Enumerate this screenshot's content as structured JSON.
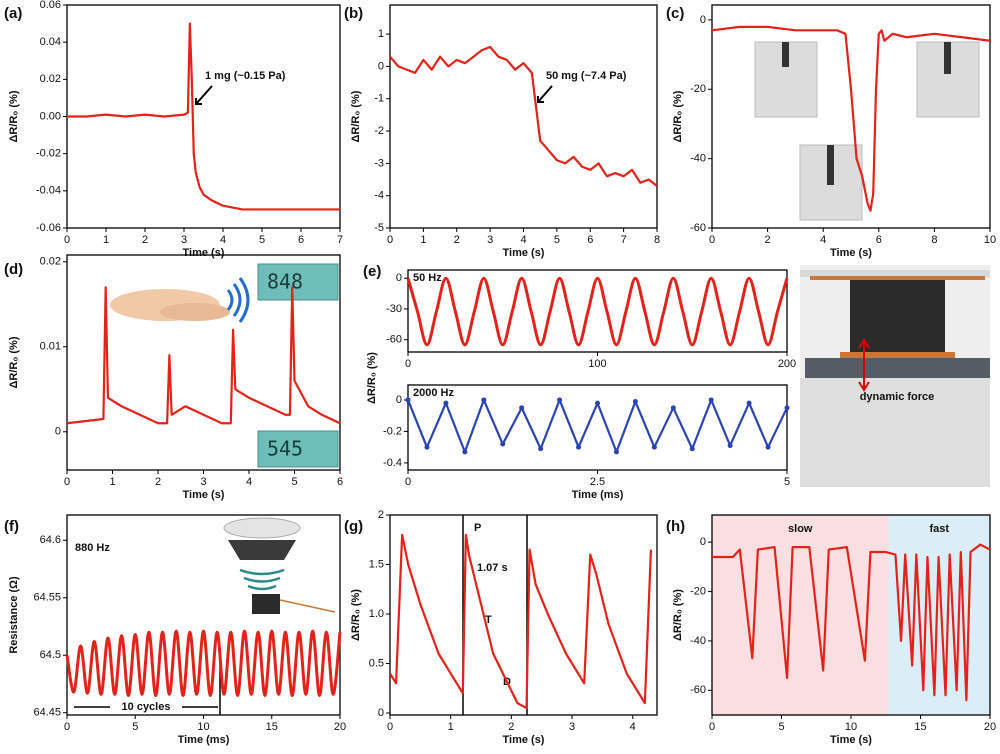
{
  "chart_data": [
    {
      "type": "line",
      "label": "(a)",
      "xlabel": "Time (s)",
      "ylabel": "ΔR/R₀ (%)",
      "color": "#e32219",
      "xlim": [
        0,
        7
      ],
      "xticks": [
        0,
        1,
        2,
        3,
        4,
        5,
        6,
        7
      ],
      "ylim": [
        -0.06,
        0.06
      ],
      "yticks": [
        {
          "value": -0.06,
          "label": "-0.06"
        },
        {
          "value": -0.04,
          "label": "-0.04"
        },
        {
          "value": -0.02,
          "label": "-0.02"
        },
        {
          "value": 0,
          "label": "0.00"
        },
        {
          "value": 0.02,
          "label": "0.02"
        },
        {
          "value": 0.04,
          "label": "0.04"
        },
        {
          "value": 0.06,
          "label": "0.06"
        }
      ],
      "x": [
        0,
        0.5,
        1,
        1.5,
        2,
        2.5,
        3,
        3.1,
        3.15,
        3.2,
        3.25,
        3.3,
        3.4,
        3.5,
        3.7,
        4,
        4.5,
        5,
        5.5,
        6,
        6.5,
        7
      ],
      "values": [
        0,
        0,
        0.001,
        0,
        0.001,
        0,
        0.001,
        0.002,
        0.05,
        0.02,
        -0.02,
        -0.03,
        -0.038,
        -0.042,
        -0.045,
        -0.048,
        -0.05,
        -0.05,
        -0.05,
        -0.05,
        -0.05,
        -0.05
      ],
      "annotations": [
        "1 mg (~0.15 Pa)"
      ]
    },
    {
      "type": "line",
      "label": "(b)",
      "xlabel": "Time (s)",
      "ylabel": "ΔR/R₀ (%)",
      "color": "#e32219",
      "xlim": [
        0,
        8
      ],
      "xticks": [
        0,
        1,
        2,
        3,
        4,
        5,
        6,
        7,
        8
      ],
      "ylim": [
        -5,
        1.9
      ],
      "yticks": [
        -5,
        -4,
        -3,
        -2,
        -1,
        0,
        1
      ],
      "x": [
        0,
        0.25,
        0.5,
        0.75,
        1,
        1.25,
        1.5,
        1.75,
        2,
        2.25,
        2.5,
        2.75,
        3,
        3.25,
        3.5,
        3.75,
        4,
        4.25,
        4.5,
        4.75,
        5,
        5.25,
        5.5,
        5.75,
        6,
        6.25,
        6.5,
        6.75,
        7,
        7.25,
        7.5,
        7.75,
        8
      ],
      "values": [
        0.3,
        0,
        -0.1,
        -0.2,
        0.2,
        -0.1,
        0.3,
        0,
        0.2,
        0.1,
        0.3,
        0.5,
        0.6,
        0.3,
        0.2,
        -0.1,
        0.1,
        -0.2,
        -2.3,
        -2.6,
        -2.9,
        -3,
        -2.8,
        -3.1,
        -3.2,
        -3,
        -3.4,
        -3.3,
        -3.4,
        -3.2,
        -3.6,
        -3.5,
        -3.7
      ],
      "annotations": [
        "50 mg (~7.4 Pa)"
      ]
    },
    {
      "type": "line",
      "label": "(c)",
      "xlabel": "Time (s)",
      "ylabel": "ΔR/R₀ (%)",
      "color": "#e32219",
      "xlim": [
        0,
        10
      ],
      "xticks": [
        0,
        2,
        4,
        6,
        8,
        10
      ],
      "ylim": [
        -60,
        4.3
      ],
      "yticks": [
        -60,
        -40,
        -20,
        0
      ],
      "x": [
        0,
        1,
        2,
        3,
        4,
        4.5,
        4.8,
        5,
        5.2,
        5.4,
        5.6,
        5.7,
        5.8,
        5.9,
        6,
        6.1,
        6.2,
        6.5,
        7,
        8,
        9,
        10
      ],
      "values": [
        -3,
        -2,
        -2,
        -3,
        -3,
        -3,
        -4,
        -20,
        -40,
        -45,
        -53,
        -55,
        -50,
        -20,
        -4,
        -3,
        -6,
        -4,
        -5,
        -4,
        -5,
        -6
      ]
    },
    {
      "type": "line",
      "label": "(d)",
      "xlabel": "Time (s)",
      "ylabel": "ΔR/R₀ (%)",
      "color": "#e32219",
      "xlim": [
        0,
        6
      ],
      "xticks": [
        0,
        1,
        2,
        3,
        4,
        5,
        6
      ],
      "ylim": [
        -0.0045,
        0.0208
      ],
      "yticks": [
        0,
        0.01,
        0.02
      ],
      "x": [
        0,
        0.8,
        0.85,
        0.9,
        1.2,
        1.6,
        2.0,
        2.2,
        2.25,
        2.3,
        2.6,
        3.0,
        3.4,
        3.6,
        3.65,
        3.7,
        4.0,
        4.4,
        4.8,
        4.9,
        4.95,
        5.0,
        5.3,
        5.6,
        6
      ],
      "values": [
        0.001,
        0.0015,
        0.017,
        0.004,
        0.003,
        0.002,
        0.001,
        0.001,
        0.009,
        0.002,
        0.003,
        0.002,
        0.001,
        0.001,
        0.012,
        0.005,
        0.004,
        0.003,
        0.002,
        0.002,
        0.017,
        0.006,
        0.003,
        0.002,
        0.001
      ],
      "annotations": [
        "848",
        "545"
      ]
    },
    {
      "type": "line",
      "label": "(e)",
      "ylabel": "ΔR/R₀ (%)",
      "color": "#e32219",
      "xlim": [
        0,
        200
      ],
      "xticks": [
        0,
        100,
        200
      ],
      "ylim": [
        -72,
        8
      ],
      "yticks": [
        -60,
        -30,
        0
      ],
      "x": [
        0,
        5,
        10,
        15,
        20,
        25,
        30,
        35,
        40,
        45,
        50,
        55,
        60,
        65,
        70,
        75,
        80,
        85,
        90,
        95,
        100,
        105,
        110,
        115,
        120,
        125,
        130,
        135,
        140,
        145,
        150,
        155,
        160,
        165,
        170,
        175,
        180,
        185,
        190,
        195,
        200
      ],
      "values": [
        0,
        -32.5,
        -65,
        -32.5,
        0,
        -32.5,
        -65,
        -32.5,
        0,
        -32.5,
        -65,
        -32.5,
        0,
        -32.5,
        -65,
        -32.5,
        0,
        -32.5,
        -65,
        -32.5,
        0,
        -32.5,
        -65,
        -32.5,
        0,
        -32.5,
        -65,
        -32.5,
        0,
        -32.5,
        -65,
        -32.5,
        0,
        -32.5,
        -65,
        -32.5,
        0,
        -32.5,
        -65,
        -32.5,
        0
      ],
      "annotations": [
        "50 Hz"
      ]
    },
    {
      "type": "line",
      "xlabel": "Time (ms)",
      "color": "#2a44b5",
      "markers": true,
      "xlim": [
        0,
        5
      ],
      "xticks": [
        0,
        2.5,
        5
      ],
      "ylim": [
        -0.445,
        0.095
      ],
      "yticks": [
        -0.4,
        -0.2,
        0
      ],
      "x": [
        0,
        0.25,
        0.5,
        0.75,
        1,
        1.25,
        1.5,
        1.75,
        2,
        2.25,
        2.5,
        2.75,
        3,
        3.25,
        3.5,
        3.75,
        4,
        4.25,
        4.5,
        4.75,
        5
      ],
      "values": [
        0,
        -0.3,
        -0.02,
        -0.33,
        0,
        -0.28,
        -0.05,
        -0.31,
        0,
        -0.3,
        -0.02,
        -0.33,
        -0.01,
        -0.3,
        -0.05,
        -0.31,
        0,
        -0.29,
        -0.02,
        -0.3,
        -0.05
      ],
      "annotations": [
        "2000 Hz",
        "dynamic force"
      ]
    },
    {
      "type": "line",
      "label": "(f)",
      "xlabel": "Time (ms)",
      "ylabel": "Resistance (Ω)",
      "color": "#e32219",
      "xlim": [
        0,
        20
      ],
      "xticks": [
        0,
        5,
        10,
        15,
        20
      ],
      "ylim": [
        64.448,
        64.622
      ],
      "yticks": [
        64.45,
        64.5,
        64.55,
        64.6
      ],
      "x": [
        0,
        0.5,
        1,
        1.5,
        2,
        2.5,
        3,
        3.5,
        4,
        4.5,
        5,
        5.5,
        6,
        6.5,
        7,
        7.5,
        8,
        8.5,
        9,
        9.5,
        10,
        10.5,
        11,
        11.5,
        12,
        12.5,
        13,
        13.5,
        14,
        14.5,
        15,
        15.5,
        16,
        16.5,
        17,
        17.5,
        18,
        18.5,
        19,
        19.5,
        20
      ],
      "values": [
        64.5,
        64.468,
        64.508,
        64.467,
        64.512,
        64.466,
        64.515,
        64.466,
        64.517,
        64.465,
        64.518,
        64.466,
        64.52,
        64.465,
        64.52,
        64.466,
        64.521,
        64.465,
        64.52,
        64.466,
        64.521,
        64.465,
        64.52,
        64.466,
        64.52,
        64.465,
        64.521,
        64.466,
        64.52,
        64.465,
        64.521,
        64.466,
        64.52,
        64.465,
        64.52,
        64.466,
        64.521,
        64.465,
        64.52,
        64.466,
        64.52
      ],
      "annotations": [
        "880 Hz",
        "10 cycles"
      ]
    },
    {
      "type": "line",
      "label": "(g)",
      "xlabel": "Time (s)",
      "ylabel": "ΔR/R₀ (%)",
      "color": "#e32219",
      "xlim": [
        0,
        4.4
      ],
      "xticks": [
        0,
        1,
        2,
        3,
        4
      ],
      "ylim": [
        -0.02,
        2.0
      ],
      "yticks": [
        0,
        0.5,
        {
          "value": 1,
          "label": "1.0"
        },
        1.5,
        2
      ],
      "x": [
        0,
        0.1,
        0.2,
        0.3,
        0.5,
        0.8,
        1.0,
        1.2,
        1.25,
        1.3,
        1.5,
        1.7,
        1.9,
        2.1,
        2.25,
        2.3,
        2.4,
        2.6,
        2.9,
        3.2,
        3.3,
        3.4,
        3.6,
        3.9,
        4.2,
        4.3
      ],
      "values": [
        0.4,
        0.3,
        1.8,
        1.5,
        1.1,
        0.6,
        0.4,
        0.2,
        1.8,
        1.6,
        1.1,
        0.6,
        0.35,
        0.1,
        0.05,
        1.65,
        1.3,
        1.0,
        0.6,
        0.3,
        1.6,
        1.4,
        0.9,
        0.4,
        0.1,
        1.65
      ],
      "annotations": [
        "P",
        "1.07 s",
        "T",
        "D"
      ]
    },
    {
      "type": "line",
      "label": "(h)",
      "xlabel": "Time (s)",
      "ylabel": "ΔR/R₀ (%)",
      "color": "#e32219",
      "xlim": [
        0,
        20
      ],
      "xticks": [
        0,
        5,
        10,
        15,
        20
      ],
      "ylim": [
        -70,
        11
      ],
      "yticks": [
        -60,
        -40,
        -20,
        0
      ],
      "regions": [
        {
          "label": "slow",
          "from": 0,
          "to": 12.7,
          "color": "#f9dfe2"
        },
        {
          "label": "fast",
          "from": 12.7,
          "to": 20,
          "color": "#dbeef7"
        }
      ],
      "x": [
        0,
        1.5,
        2,
        2.9,
        3.3,
        4.5,
        5.4,
        5.8,
        7,
        8,
        8.4,
        9.7,
        11,
        11.4,
        12.5,
        13.2,
        13.6,
        13.9,
        14.4,
        14.7,
        15.2,
        15.5,
        16,
        16.3,
        16.8,
        17.1,
        17.6,
        17.9,
        18.3,
        18.6,
        19.3,
        20
      ],
      "values": [
        -6,
        -6,
        -3,
        -47,
        -3,
        -2,
        -55,
        -2,
        -2,
        -52,
        -3,
        -2,
        -48,
        -4,
        -4,
        -5,
        -40,
        -5,
        -50,
        -5,
        -60,
        -6,
        -62,
        -6,
        -62,
        -5,
        -60,
        -4,
        -64,
        -4,
        -1,
        -3
      ]
    }
  ]
}
